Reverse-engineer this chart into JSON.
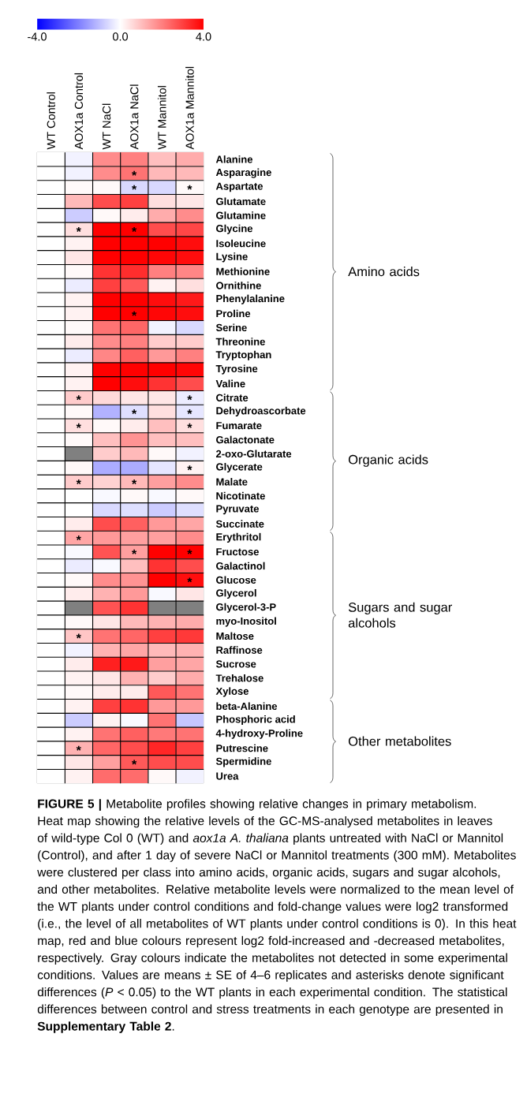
{
  "chart_data": {
    "type": "heatmap",
    "categories": [
      "WT Control",
      "AOX1a Control",
      "WT NaCl",
      "AOX1a NaCl",
      "WT Mannitol",
      "AOX1a Mannitol"
    ],
    "y_categories": [
      "Alanine",
      "Asparagine",
      "Aspartate",
      "Glutamate",
      "Glutamine",
      "Glycine",
      "Isoleucine",
      "Lysine",
      "Methionine",
      "Ornithine",
      "Phenylalanine",
      "Proline",
      "Serine",
      "Threonine",
      "Tryptophan",
      "Tyrosine",
      "Valine",
      "Citrate",
      "Dehydroascorbate",
      "Fumarate",
      "Galactonate",
      "2-oxo-Glutarate",
      "Glycerate",
      "Malate",
      "Nicotinate",
      "Pyruvate",
      "Succinate",
      "Erythritol",
      "Fructose",
      "Galactinol",
      "Glucose",
      "Glycerol",
      "Glycerol-3-P",
      "myo-Inositol",
      "Maltose",
      "Raffinose",
      "Sucrose",
      "Trehalose",
      "Xylose",
      "beta-Alanine",
      "Phosphoric acid",
      "4-hydroxy-Proline",
      "Putrescine",
      "Spermidine",
      "Urea"
    ],
    "cells": [
      [
        0,
        -0.2,
        1.8,
        2.0,
        1.0,
        1.3
      ],
      [
        0,
        -0.2,
        1.8,
        2.2,
        1.1,
        1.1
      ],
      [
        0,
        0.1,
        0.1,
        -0.6,
        -0.6,
        0.1
      ],
      [
        0,
        1.1,
        2.8,
        3.0,
        0.5,
        0.4
      ],
      [
        0,
        -0.8,
        0.1,
        0.3,
        1.3,
        1.8
      ],
      [
        0,
        0.5,
        4.0,
        4.0,
        2.8,
        2.9
      ],
      [
        0,
        0.2,
        4.0,
        4.0,
        4.0,
        3.8
      ],
      [
        0,
        0.4,
        4.0,
        4.0,
        3.9,
        3.8
      ],
      [
        0,
        0.1,
        3.2,
        3.3,
        2.0,
        1.9
      ],
      [
        0,
        -0.3,
        3.0,
        2.6,
        0.2,
        0.5
      ],
      [
        0,
        0.2,
        4.0,
        4.0,
        3.8,
        3.6
      ],
      [
        0,
        0.2,
        4.0,
        4.0,
        3.9,
        3.8
      ],
      [
        0,
        0.1,
        2.2,
        2.4,
        -0.2,
        -0.6
      ],
      [
        0,
        0.3,
        1.8,
        2.0,
        0.8,
        0.8
      ],
      [
        0,
        -0.3,
        1.9,
        2.5,
        1.6,
        2.0
      ],
      [
        0,
        0.2,
        4.0,
        4.0,
        4.0,
        3.9
      ],
      [
        0,
        0.2,
        4.0,
        3.8,
        3.2,
        2.8
      ],
      [
        0,
        0.8,
        0.6,
        0.4,
        0.4,
        -0.3
      ],
      [
        0,
        0.1,
        -1.2,
        -0.5,
        0.5,
        -0.4
      ],
      [
        0,
        0.5,
        0.1,
        0.3,
        1.0,
        0.5
      ],
      [
        0,
        0.1,
        1.0,
        1.7,
        1.0,
        1.0
      ],
      [
        0,
        null,
        0.8,
        1.1,
        0.1,
        -0.2
      ],
      [
        0,
        0.1,
        -1.3,
        -1.3,
        -0.4,
        0.2
      ],
      [
        0,
        0.8,
        0.7,
        1.1,
        1.5,
        1.8
      ],
      [
        0,
        0.0,
        -0.1,
        0.1,
        -0.1,
        0.1
      ],
      [
        0,
        0.0,
        -0.6,
        -0.5,
        -0.8,
        -0.5
      ],
      [
        0,
        0.3,
        2.8,
        2.5,
        1.6,
        1.4
      ],
      [
        0,
        1.4,
        1.6,
        1.5,
        1.5,
        1.8
      ],
      [
        0,
        -0.1,
        2.7,
        1.5,
        4.0,
        4.0
      ],
      [
        0,
        -0.3,
        -0.1,
        1.0,
        3.2,
        2.8
      ],
      [
        0,
        0.1,
        1.8,
        1.7,
        4.0,
        3.8
      ],
      [
        0,
        0.3,
        1.2,
        1.6,
        -0.1,
        0.4
      ],
      [
        0,
        null,
        2.7,
        3.2,
        null,
        null
      ],
      [
        0,
        0.1,
        0.4,
        1.1,
        1.2,
        1.3
      ],
      [
        0,
        0.9,
        2.2,
        2.4,
        3.0,
        3.1
      ],
      [
        0,
        -0.2,
        1.2,
        1.4,
        1.1,
        1.2
      ],
      [
        0,
        0.3,
        3.5,
        3.6,
        1.5,
        1.4
      ],
      [
        0,
        0.2,
        0.4,
        1.2,
        0.8,
        1.3
      ],
      [
        0,
        0.1,
        0.3,
        0.3,
        2.6,
        2.2
      ],
      [
        0,
        0.2,
        3.0,
        3.2,
        1.6,
        1.6
      ],
      [
        0,
        -0.8,
        0.2,
        -0.1,
        2.2,
        -0.9
      ],
      [
        0,
        0.2,
        2.2,
        2.5,
        2.1,
        2.2
      ],
      [
        0,
        1.2,
        2.4,
        2.8,
        3.4,
        3.0
      ],
      [
        0,
        0.4,
        1.5,
        2.6,
        2.8,
        2.8
      ],
      [
        0,
        0.2,
        2.3,
        2.3,
        0.1,
        -0.2
      ]
    ],
    "cell_labels": [
      [
        null,
        null,
        null,
        null,
        null,
        null
      ],
      [
        null,
        null,
        null,
        "*",
        null,
        null
      ],
      [
        null,
        null,
        null,
        "*",
        null,
        "*"
      ],
      [
        null,
        null,
        null,
        null,
        null,
        null
      ],
      [
        null,
        null,
        null,
        null,
        null,
        null
      ],
      [
        null,
        "*",
        null,
        "*",
        null,
        null
      ],
      [
        null,
        null,
        null,
        null,
        null,
        null
      ],
      [
        null,
        null,
        null,
        null,
        null,
        null
      ],
      [
        null,
        null,
        null,
        null,
        null,
        null
      ],
      [
        null,
        null,
        null,
        null,
        null,
        null
      ],
      [
        null,
        null,
        null,
        null,
        null,
        null
      ],
      [
        null,
        null,
        null,
        "*",
        null,
        null
      ],
      [
        null,
        null,
        null,
        null,
        null,
        null
      ],
      [
        null,
        null,
        null,
        null,
        null,
        null
      ],
      [
        null,
        null,
        null,
        null,
        null,
        null
      ],
      [
        null,
        null,
        null,
        null,
        null,
        null
      ],
      [
        null,
        null,
        null,
        null,
        null,
        null
      ],
      [
        null,
        "*",
        null,
        null,
        null,
        "*"
      ],
      [
        null,
        null,
        null,
        "*",
        null,
        "*"
      ],
      [
        null,
        "*",
        null,
        null,
        null,
        "*"
      ],
      [
        null,
        null,
        null,
        null,
        null,
        null
      ],
      [
        null,
        null,
        null,
        null,
        null,
        null
      ],
      [
        null,
        null,
        null,
        null,
        null,
        "*"
      ],
      [
        null,
        "*",
        null,
        "*",
        null,
        null
      ],
      [
        null,
        null,
        null,
        null,
        null,
        null
      ],
      [
        null,
        null,
        null,
        null,
        null,
        null
      ],
      [
        null,
        null,
        null,
        null,
        null,
        null
      ],
      [
        null,
        "*",
        null,
        null,
        null,
        null
      ],
      [
        null,
        null,
        null,
        "*",
        null,
        "*"
      ],
      [
        null,
        null,
        null,
        null,
        null,
        null
      ],
      [
        null,
        null,
        null,
        null,
        null,
        "*"
      ],
      [
        null,
        null,
        null,
        null,
        null,
        null
      ],
      [
        null,
        null,
        null,
        null,
        null,
        null
      ],
      [
        null,
        null,
        null,
        null,
        null,
        null
      ],
      [
        null,
        "*",
        null,
        null,
        null,
        null
      ],
      [
        null,
        null,
        null,
        null,
        null,
        null
      ],
      [
        null,
        null,
        null,
        null,
        null,
        null
      ],
      [
        null,
        null,
        null,
        null,
        null,
        null
      ],
      [
        null,
        null,
        null,
        null,
        null,
        null
      ],
      [
        null,
        null,
        null,
        null,
        null,
        null
      ],
      [
        null,
        null,
        null,
        null,
        null,
        null
      ],
      [
        null,
        null,
        null,
        null,
        null,
        null
      ],
      [
        null,
        "*",
        null,
        null,
        null,
        null
      ],
      [
        null,
        null,
        null,
        "*",
        null,
        null
      ],
      [
        null,
        null,
        null,
        null,
        null,
        null
      ]
    ],
    "clim": [
      -4,
      4
    ],
    "cticks": [
      {
        "value": -4,
        "label": "-4.0"
      },
      {
        "value": 0,
        "label": "0.0"
      },
      {
        "value": 4,
        "label": "4.0"
      }
    ],
    "annotations": [
      "Amino acids",
      "Organic acids",
      "Sugars and sugar alcohols",
      "Other metabolites",
      "**FIGURE 5 |** Metabolite profiles showing relative changes in primary metabolism. Heat map showing the relative levels of the GC-MS-analysed metabolites in leaves of wild-type Col 0 (WT) and *aox1a A. thaliana* plants untreated with NaCl or Mannitol (Control), and after 1 day of severe NaCl or Mannitol treatments (300 mM). Metabolites were clustered per class into amino acids, organic acids, sugars and sugar alcohols, and other metabolites. Relative metabolite levels were normalized to the mean level of the WT plants under control conditions and fold-change values were log2 transformed (i.e., the level of all metabolites of WT plants under control conditions is 0). In this heat map, red and blue colours represent log2 fold-increased and -decreased metabolites, respectively. Gray colours indicate the metabolites not detected in some experimental conditions. Values are means ± SE of 4–6 replicates and asterisks denote significant differences (*P* < 0.05) to the WT plants in each experimental condition. The statistical differences between control and stress treatments in each genotype are presented in **Supplementary Table 2**."
    ]
  }
}
